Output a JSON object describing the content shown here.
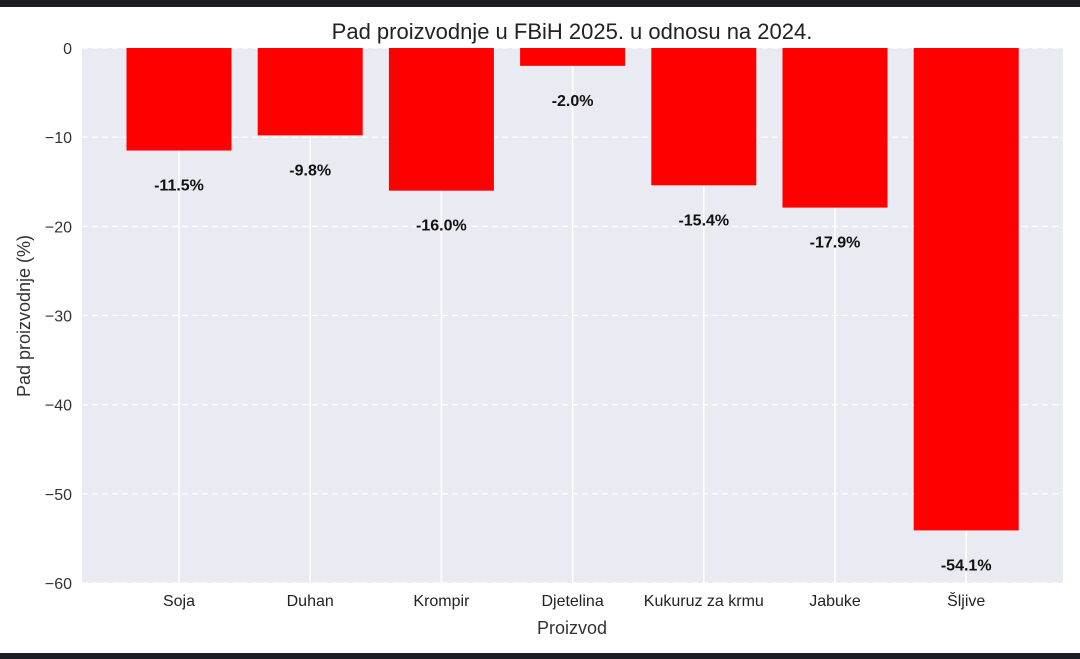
{
  "chart_data": {
    "type": "bar",
    "title": "Pad proizvodnje u FBiH 2025. u odnosu na 2024.",
    "xlabel": "Proizvod",
    "ylabel": "Pad proizvodnje (%)",
    "categories": [
      "Soja",
      "Duhan",
      "Krompir",
      "Djetelina",
      "Kukuruz za krmu",
      "Jabuke",
      "Šljive"
    ],
    "values": [
      -11.5,
      -9.8,
      -16.0,
      -2.0,
      -15.4,
      -17.9,
      -54.1
    ],
    "data_labels": [
      "-11.5%",
      "-9.8%",
      "-16.0%",
      "-2.0%",
      "-15.4%",
      "-17.9%",
      "-54.1%"
    ],
    "ylim": [
      -60,
      0
    ],
    "yticks": [
      0,
      -10,
      -20,
      -30,
      -40,
      -50,
      -60
    ],
    "ytick_labels": [
      "0",
      "−10",
      "−20",
      "−30",
      "−40",
      "−50",
      "−60"
    ],
    "grid": true,
    "colors": {
      "bar": "#ff0000",
      "plot_background": "#eaeaf2",
      "grid": "#ffffff"
    }
  }
}
